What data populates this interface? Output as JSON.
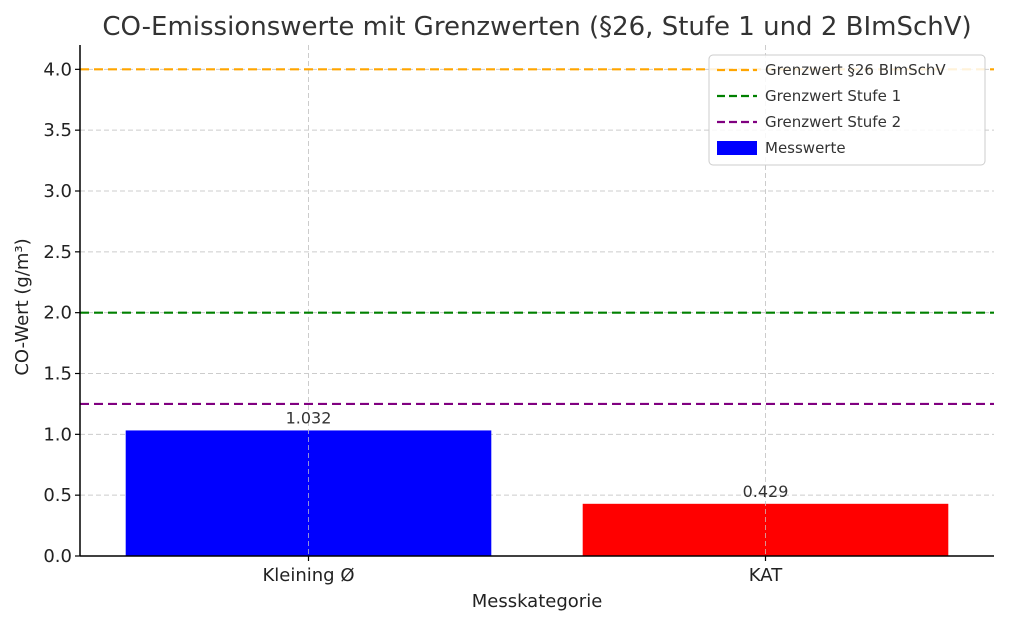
{
  "chart_data": {
    "type": "bar",
    "title": "CO-Emissionswerte mit Grenzwerten (§26, Stufe 1 und 2 BImSchV)",
    "xlabel": "Messkategorie",
    "ylabel": "CO-Wert (g/m³)",
    "ylim": [
      0,
      4.2
    ],
    "yticks": [
      "0.0",
      "0.5",
      "1.0",
      "1.5",
      "2.0",
      "2.5",
      "3.0",
      "3.5",
      "4.0"
    ],
    "categories": [
      "Kleining Ø",
      "KAT"
    ],
    "series": [
      {
        "name": "Messwerte",
        "values": [
          1.032,
          0.429
        ],
        "value_labels": [
          "1.032",
          "0.429"
        ],
        "colors": [
          "#0000ff",
          "#ff0000"
        ]
      }
    ],
    "reference_lines": [
      {
        "name": "Grenzwert §26 BImSchV",
        "value": 4.0,
        "color": "#ffa500"
      },
      {
        "name": "Grenzwert Stufe 1",
        "value": 2.0,
        "color": "#008000"
      },
      {
        "name": "Grenzwert Stufe 2",
        "value": 1.25,
        "color": "#800080"
      }
    ],
    "legend": {
      "placement": "top-right",
      "entries": [
        "Grenzwert §26 BImSchV",
        "Grenzwert Stufe 1",
        "Grenzwert Stufe 2",
        "Messwerte"
      ]
    },
    "grid": true
  }
}
